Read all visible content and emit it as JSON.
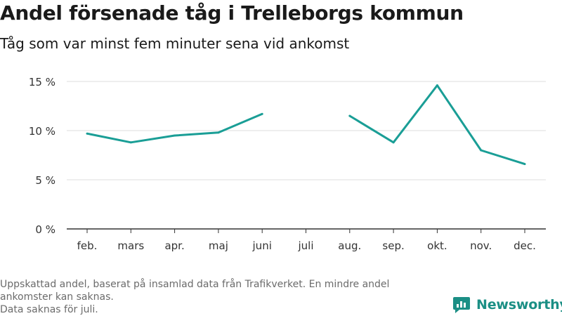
{
  "title": "Andel försenade tåg i Trelleborgs kommun",
  "subtitle": "Tåg som var minst fem minuter sena vid ankomst",
  "footnote": [
    "Uppskattad andel, baserat på insamlad data från Trafikverket. En mindre andel ankomster kan saknas.",
    "Data saknas för juli."
  ],
  "brand": {
    "name": "Newsworthy",
    "color": "#1b8f85"
  },
  "chart_data": {
    "type": "line",
    "categories": [
      "feb.",
      "mars",
      "apr.",
      "maj",
      "juni",
      "juli",
      "aug.",
      "sep.",
      "okt.",
      "nov.",
      "dec."
    ],
    "values": [
      9.7,
      8.8,
      9.5,
      9.8,
      11.7,
      null,
      11.5,
      8.8,
      14.6,
      8.0,
      6.6
    ],
    "ylim": [
      0,
      16
    ],
    "yticks": [
      0,
      5,
      10,
      15
    ],
    "ytick_labels": [
      "0 %",
      "5 %",
      "10 %",
      "15 %"
    ],
    "line_color": "#1a9e96",
    "grid": true,
    "legend": "none"
  }
}
